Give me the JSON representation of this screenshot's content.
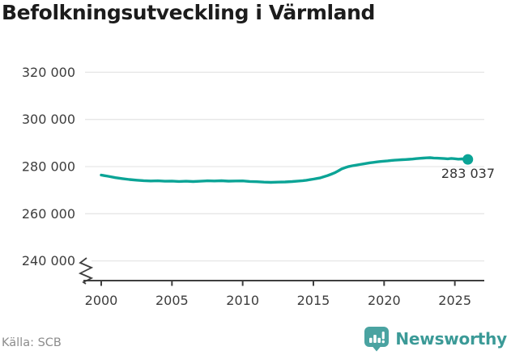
{
  "chart": {
    "title": "Befolkningsutveckling i Värmland"
  },
  "footer": {
    "source": "Källa: SCB",
    "brand": "Newsworthy"
  },
  "colors": {
    "line_color": "#0ba496",
    "brand_color": "#4aa3a1",
    "brand_text_color": "#3b9a97",
    "grid_color": "#e6e6e6",
    "axis_color": "#3f3f3f",
    "tick_label_color": "#3d3d3d",
    "annotation_color": "#333333",
    "title_color": "#1c1c1c",
    "source_color": "#8c8c8c"
  },
  "chart_data": {
    "type": "line",
    "title": "Befolkningsutveckling i Värmland",
    "xlabel": "",
    "ylabel": "",
    "grid": "horizontal",
    "legend": "none",
    "xlim": [
      1999.5,
      2027
    ],
    "ylim": [
      237000,
      327000
    ],
    "axis_break": "y-axis broken below 240 000",
    "x_ticks": [
      {
        "v": 2000,
        "label": "2000"
      },
      {
        "v": 2005,
        "label": "2005"
      },
      {
        "v": 2010,
        "label": "2010"
      },
      {
        "v": 2015,
        "label": "2015"
      },
      {
        "v": 2020,
        "label": "2020"
      },
      {
        "v": 2025,
        "label": "2025"
      }
    ],
    "y_ticks": [
      {
        "v": 240000,
        "label": "240 000"
      },
      {
        "v": 260000,
        "label": "260 000"
      },
      {
        "v": 280000,
        "label": "280 000"
      },
      {
        "v": 300000,
        "label": "300 000"
      },
      {
        "v": 320000,
        "label": "320 000"
      }
    ],
    "end_point": {
      "x": 2025.92,
      "y": 283037,
      "label": "283 037"
    },
    "series": [
      {
        "name": "Värmland",
        "points": [
          [
            2000,
            276400
          ],
          [
            2000.5,
            275900
          ],
          [
            2001,
            275300
          ],
          [
            2001.5,
            274900
          ],
          [
            2002,
            274500
          ],
          [
            2002.5,
            274250
          ],
          [
            2003,
            274050
          ],
          [
            2003.5,
            273900
          ],
          [
            2004,
            273950
          ],
          [
            2004.5,
            273800
          ],
          [
            2005,
            273850
          ],
          [
            2005.5,
            273700
          ],
          [
            2006,
            273800
          ],
          [
            2006.5,
            273650
          ],
          [
            2007,
            273800
          ],
          [
            2007.5,
            273975
          ],
          [
            2008,
            273900
          ],
          [
            2008.5,
            274000
          ],
          [
            2009,
            273825
          ],
          [
            2009.5,
            273900
          ],
          [
            2010,
            273925
          ],
          [
            2010.5,
            273700
          ],
          [
            2011,
            273600
          ],
          [
            2011.5,
            273400
          ],
          [
            2012,
            273300
          ],
          [
            2012.5,
            273400
          ],
          [
            2013,
            273500
          ],
          [
            2013.5,
            273650
          ],
          [
            2014,
            273900
          ],
          [
            2014.25,
            274050
          ],
          [
            2014.5,
            274200
          ],
          [
            2014.75,
            274450
          ],
          [
            2015,
            274700
          ],
          [
            2015.25,
            274950
          ],
          [
            2015.5,
            275250
          ],
          [
            2015.75,
            275700
          ],
          [
            2016,
            276200
          ],
          [
            2016.25,
            276750
          ],
          [
            2016.5,
            277350
          ],
          [
            2016.75,
            278150
          ],
          [
            2017,
            279000
          ],
          [
            2017.25,
            279550
          ],
          [
            2017.5,
            280050
          ],
          [
            2017.75,
            280350
          ],
          [
            2018,
            280600
          ],
          [
            2018.25,
            280850
          ],
          [
            2018.5,
            281100
          ],
          [
            2018.75,
            281350
          ],
          [
            2019,
            281600
          ],
          [
            2019.25,
            281800
          ],
          [
            2019.5,
            282000
          ],
          [
            2019.75,
            282150
          ],
          [
            2020,
            282300
          ],
          [
            2020.25,
            282450
          ],
          [
            2020.5,
            282600
          ],
          [
            2020.75,
            282700
          ],
          [
            2021,
            282800
          ],
          [
            2021.25,
            282900
          ],
          [
            2021.5,
            283000
          ],
          [
            2021.75,
            283100
          ],
          [
            2022,
            283200
          ],
          [
            2022.25,
            283350
          ],
          [
            2022.5,
            283500
          ],
          [
            2022.75,
            283600
          ],
          [
            2023,
            283700
          ],
          [
            2023.25,
            283760
          ],
          [
            2023.5,
            283650
          ],
          [
            2023.75,
            283560
          ],
          [
            2024,
            283500
          ],
          [
            2024.25,
            283380
          ],
          [
            2024.5,
            283300
          ],
          [
            2024.75,
            283460
          ],
          [
            2025,
            283340
          ],
          [
            2025.25,
            283160
          ],
          [
            2025.5,
            283260
          ],
          [
            2025.75,
            283100
          ],
          [
            2025.92,
            283037
          ]
        ]
      }
    ]
  }
}
